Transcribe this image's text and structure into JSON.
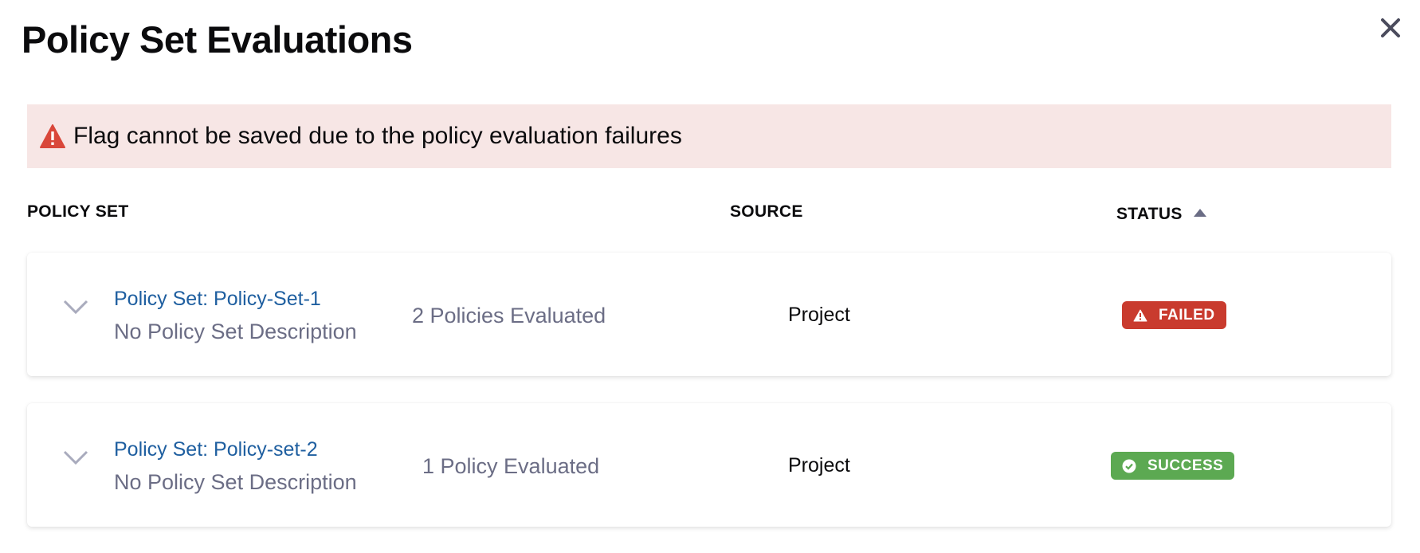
{
  "dialog": {
    "title": "Policy Set Evaluations"
  },
  "banner": {
    "message": "Flag cannot be saved due to the policy evaluation failures",
    "icon": "warning-triangle-icon",
    "color": "#d9473a"
  },
  "table": {
    "columns": [
      "POLICY SET",
      "SOURCE",
      "STATUS"
    ],
    "sort": {
      "column": "STATUS",
      "direction": "ascending"
    },
    "rows": [
      {
        "name": "Policy Set: Policy-Set-1",
        "description": "No Policy Set Description",
        "evaluated": "2 Policies Evaluated",
        "source": "Project",
        "status": "FAILED",
        "status_color": "#c93b2e"
      },
      {
        "name": "Policy Set: Policy-set-2",
        "description": "No Policy Set Description",
        "evaluated": "1 Policy Evaluated",
        "source": "Project",
        "status": "SUCCESS",
        "status_color": "#5ca952"
      }
    ]
  }
}
